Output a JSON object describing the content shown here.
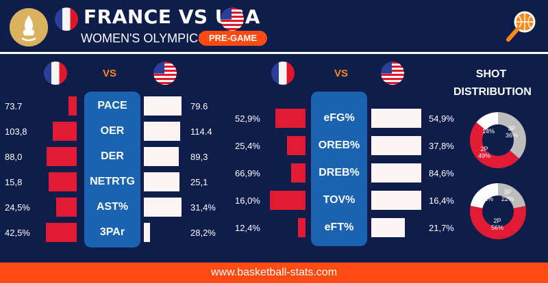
{
  "header": {
    "title": "FRANCE VS USA",
    "subtitle": "WOMEN'S OLYMPICS",
    "badge": "PRE-GAME"
  },
  "vs_label": "VS",
  "left_table": {
    "rows": [
      {
        "label": "PACE",
        "france": "73.7",
        "usa": "79.6",
        "france_bar": 0.17,
        "usa_bar": 0.88
      },
      {
        "label": "OER",
        "france": "103,8",
        "usa": "114.4",
        "france_bar": 0.48,
        "usa_bar": 0.86
      },
      {
        "label": "DER",
        "france": "88,0",
        "usa": "89,3",
        "france_bar": 0.61,
        "usa_bar": 0.82
      },
      {
        "label": "NETRTG",
        "france": "15,8",
        "usa": "25,1",
        "france_bar": 0.57,
        "usa_bar": 0.84
      },
      {
        "label": "AST%",
        "france": "24,5%",
        "usa": "31,4%",
        "france_bar": 0.41,
        "usa_bar": 0.88
      },
      {
        "label": "3PAr",
        "france": "42,5%",
        "usa": "28,2%",
        "france_bar": 0.63,
        "usa_bar": 0.14
      }
    ]
  },
  "right_table": {
    "rows": [
      {
        "label": "eFG%",
        "france": "52,9%",
        "usa": "54,9%",
        "france_bar": 0.51,
        "usa_bar": 0.93
      },
      {
        "label": "OREB%",
        "france": "25,4%",
        "usa": "37,8%",
        "france_bar": 0.31,
        "usa_bar": 0.93
      },
      {
        "label": "DREB%",
        "france": "66,9%",
        "usa": "84,6%",
        "france_bar": 0.24,
        "usa_bar": 0.93
      },
      {
        "label": "TOV%",
        "france": "16,0%",
        "usa": "16,4%",
        "france_bar": 0.61,
        "usa_bar": 0.93
      },
      {
        "label": "eFT%",
        "france": "12,4%",
        "usa": "21,7%",
        "france_bar": 0.13,
        "usa_bar": 0.63
      }
    ]
  },
  "shot_distribution": {
    "title_line1": "SHOT",
    "title_line2": "DISTRIBUTION",
    "france": {
      "ft": "FT\n14%",
      "three": "3P\n36%",
      "two": "2P\n49%",
      "ft_val": 14,
      "three_val": 36,
      "two_val": 49
    },
    "usa": {
      "ft": "FT\n22%",
      "three": "3P\n22%",
      "two": "2P\n56%",
      "ft_val": 22,
      "three_val": 22,
      "two_val": 56
    }
  },
  "footer": {
    "url": "www.basketball-stats.com"
  },
  "colors": {
    "background": "#0f1d4a",
    "accent": "#ff4b12",
    "bar_red": "#e21b34",
    "bar_white": "#fbf3f4",
    "stat_box": "#1a63b0"
  }
}
